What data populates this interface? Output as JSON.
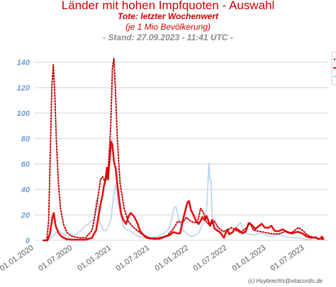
{
  "chart_data": {
    "type": "line",
    "title": "Länder mit hohen Impfquoten - Auswahl",
    "subtitle": "Tote: letzter Wochenwert",
    "subtitle2": "(je 1 Mio Bevölkerung)",
    "stand": "- Stand: 27.09.2023 - 11:41 UTC -",
    "credit": "(c) Huybrechts@vitacordis.de",
    "ylim": [
      0,
      150
    ],
    "yticks": [
      "0",
      "20",
      "40",
      "60",
      "80",
      "100",
      "120",
      "140"
    ],
    "ytick_values": [
      0,
      20,
      40,
      60,
      80,
      100,
      120,
      140
    ],
    "xlim": [
      "2020-01-01",
      "2023-10-20"
    ],
    "xticks": [
      "01.01.2020",
      "01.07.2020",
      "01.01.2021",
      "01.07.2021",
      "01.01.2022",
      "01.07.2022",
      "01.01.2023",
      "01.07.2023"
    ],
    "xtick_dates": [
      "2020-01-01",
      "2020-07-01",
      "2021-01-01",
      "2021-07-01",
      "2022-01-01",
      "2022-07-01",
      "2023-01-01",
      "2023-07-01"
    ],
    "grid": true,
    "legend": "right",
    "series": [
      {
        "color": "#c00000",
        "style": "dotted",
        "points": [
          [
            "2020-02-15",
            0
          ],
          [
            "2020-03-01",
            0
          ],
          [
            "2020-03-10",
            15
          ],
          [
            "2020-03-18",
            70
          ],
          [
            "2020-03-25",
            120
          ],
          [
            "2020-04-01",
            138
          ],
          [
            "2020-04-08",
            115
          ],
          [
            "2020-04-15",
            80
          ],
          [
            "2020-04-25",
            45
          ],
          [
            "2020-05-05",
            25
          ],
          [
            "2020-05-20",
            12
          ],
          [
            "2020-06-05",
            6
          ],
          [
            "2020-07-01",
            3
          ],
          [
            "2020-08-01",
            2
          ],
          [
            "2020-09-01",
            2
          ],
          [
            "2020-10-01",
            8
          ],
          [
            "2020-10-15",
            20
          ],
          [
            "2020-11-01",
            38
          ],
          [
            "2020-11-10",
            48
          ],
          [
            "2020-11-20",
            50
          ],
          [
            "2020-12-01",
            46
          ],
          [
            "2020-12-15",
            52
          ],
          [
            "2020-12-28",
            90
          ],
          [
            "2021-01-05",
            135
          ],
          [
            "2021-01-12",
            143
          ],
          [
            "2021-01-20",
            115
          ],
          [
            "2021-01-28",
            80
          ],
          [
            "2021-02-10",
            45
          ],
          [
            "2021-03-01",
            25
          ],
          [
            "2021-03-20",
            15
          ],
          [
            "2021-04-15",
            10
          ],
          [
            "2021-05-15",
            6
          ],
          [
            "2021-06-15",
            3
          ],
          [
            "2021-07-15",
            1
          ],
          [
            "2021-08-15",
            1
          ],
          [
            "2021-09-15",
            3
          ],
          [
            "2021-10-15",
            8
          ],
          [
            "2021-11-10",
            15
          ],
          [
            "2021-12-01",
            14
          ],
          [
            "2021-12-20",
            18
          ],
          [
            "2022-01-10",
            15
          ],
          [
            "2022-01-25",
            14
          ],
          [
            "2022-02-10",
            14
          ],
          [
            "2022-02-25",
            25
          ],
          [
            "2022-03-10",
            22
          ],
          [
            "2022-03-25",
            14
          ],
          [
            "2022-04-10",
            12
          ],
          [
            "2022-05-01",
            15
          ],
          [
            "2022-05-20",
            10
          ],
          [
            "2022-06-10",
            7
          ],
          [
            "2022-07-01",
            8
          ],
          [
            "2022-07-20",
            10
          ],
          [
            "2022-08-10",
            8
          ],
          [
            "2022-09-01",
            6
          ],
          [
            "2022-10-01",
            10
          ],
          [
            "2022-10-15",
            14
          ],
          [
            "2022-11-01",
            8
          ],
          [
            "2022-12-01",
            7
          ],
          [
            "2023-01-01",
            6
          ],
          [
            "2023-02-01",
            5
          ],
          [
            "2023-03-01",
            5
          ],
          [
            "2023-04-01",
            7
          ],
          [
            "2023-05-01",
            6
          ],
          [
            "2023-06-01",
            10
          ],
          [
            "2023-06-20",
            8
          ],
          [
            "2023-07-15",
            4
          ],
          [
            "2023-08-15",
            2
          ],
          [
            "2023-09-15",
            1
          ],
          [
            "2023-09-27",
            1
          ]
        ]
      },
      {
        "color": "#e81010",
        "style": "solid",
        "points": [
          [
            "2020-02-15",
            0
          ],
          [
            "2020-03-05",
            0
          ],
          [
            "2020-03-15",
            5
          ],
          [
            "2020-03-28",
            18
          ],
          [
            "2020-04-03",
            20
          ],
          [
            "2020-04-12",
            12
          ],
          [
            "2020-04-25",
            6
          ],
          [
            "2020-05-10",
            3
          ],
          [
            "2020-06-01",
            1
          ],
          [
            "2020-07-01",
            0.5
          ],
          [
            "2020-08-01",
            0.5
          ],
          [
            "2020-09-01",
            0.5
          ],
          [
            "2020-10-01",
            2
          ],
          [
            "2020-10-20",
            8
          ],
          [
            "2020-11-05",
            22
          ],
          [
            "2020-11-20",
            35
          ],
          [
            "2020-12-01",
            46
          ],
          [
            "2020-12-10",
            55
          ],
          [
            "2020-12-15",
            48
          ],
          [
            "2020-12-22",
            62
          ],
          [
            "2020-12-30",
            76
          ],
          [
            "2021-01-05",
            75
          ],
          [
            "2021-01-12",
            62
          ],
          [
            "2021-01-20",
            55
          ],
          [
            "2021-01-28",
            42
          ],
          [
            "2021-02-05",
            32
          ],
          [
            "2021-02-15",
            22
          ],
          [
            "2021-02-25",
            15
          ],
          [
            "2021-03-10",
            12
          ],
          [
            "2021-03-20",
            19
          ],
          [
            "2021-04-01",
            20
          ],
          [
            "2021-04-15",
            18
          ],
          [
            "2021-05-01",
            15
          ],
          [
            "2021-05-15",
            8
          ],
          [
            "2021-06-01",
            4
          ],
          [
            "2021-06-15",
            2
          ],
          [
            "2021-07-01",
            1.5
          ],
          [
            "2021-08-01",
            1.5
          ],
          [
            "2021-09-01",
            2.5
          ],
          [
            "2021-10-01",
            4
          ],
          [
            "2021-10-20",
            6
          ],
          [
            "2021-11-10",
            5
          ],
          [
            "2021-11-20",
            6
          ],
          [
            "2021-12-01",
            13
          ],
          [
            "2021-12-15",
            22
          ],
          [
            "2021-12-25",
            32
          ],
          [
            "2022-01-01",
            33
          ],
          [
            "2022-01-10",
            24
          ],
          [
            "2022-01-20",
            20
          ],
          [
            "2022-02-01",
            15
          ],
          [
            "2022-02-15",
            12
          ],
          [
            "2022-02-25",
            16
          ],
          [
            "2022-03-05",
            20
          ],
          [
            "2022-03-15",
            15
          ],
          [
            "2022-03-25",
            20
          ],
          [
            "2022-04-01",
            17
          ],
          [
            "2022-04-10",
            12
          ],
          [
            "2022-04-20",
            15
          ],
          [
            "2022-05-01",
            10
          ],
          [
            "2022-05-15",
            8
          ],
          [
            "2022-06-01",
            5
          ],
          [
            "2022-06-15",
            2
          ],
          [
            "2022-07-01",
            9
          ],
          [
            "2022-07-10",
            5
          ],
          [
            "2022-07-25",
            6
          ],
          [
            "2022-08-10",
            9
          ],
          [
            "2022-08-25",
            8
          ],
          [
            "2022-09-10",
            6
          ],
          [
            "2022-09-25",
            7
          ],
          [
            "2022-10-10",
            13
          ],
          [
            "2022-10-25",
            11
          ],
          [
            "2022-11-10",
            9
          ],
          [
            "2022-11-25",
            12
          ],
          [
            "2022-12-10",
            14
          ],
          [
            "2022-12-25",
            10
          ],
          [
            "2023-01-10",
            9
          ],
          [
            "2023-01-25",
            11
          ],
          [
            "2023-02-10",
            8
          ],
          [
            "2023-03-01",
            7
          ],
          [
            "2023-03-20",
            8
          ],
          [
            "2023-04-10",
            6
          ],
          [
            "2023-05-01",
            5
          ],
          [
            "2023-06-01",
            7
          ],
          [
            "2023-06-20",
            5
          ],
          [
            "2023-07-10",
            3
          ],
          [
            "2023-08-01",
            2
          ],
          [
            "2023-08-20",
            2.5
          ],
          [
            "2023-09-05",
            1
          ],
          [
            "2023-09-15",
            1.5
          ],
          [
            "2023-09-20",
            3
          ],
          [
            "2023-09-27",
            1
          ]
        ]
      },
      {
        "color": "#b8d4ef",
        "style": "solid",
        "points": [
          [
            "2020-03-01",
            0
          ],
          [
            "2020-03-20",
            2
          ],
          [
            "2020-04-10",
            5
          ],
          [
            "2020-04-25",
            8
          ],
          [
            "2020-05-15",
            5
          ],
          [
            "2020-06-15",
            3
          ],
          [
            "2020-07-15",
            4
          ],
          [
            "2020-08-10",
            8
          ],
          [
            "2020-08-25",
            10
          ],
          [
            "2020-09-10",
            12
          ],
          [
            "2020-09-25",
            15
          ],
          [
            "2020-10-10",
            18
          ],
          [
            "2020-10-20",
            30
          ],
          [
            "2020-10-28",
            31
          ],
          [
            "2020-11-05",
            14
          ],
          [
            "2020-11-20",
            9
          ],
          [
            "2020-12-05",
            8
          ],
          [
            "2020-12-20",
            13
          ],
          [
            "2020-12-30",
            16
          ],
          [
            "2021-01-10",
            36
          ],
          [
            "2021-01-20",
            42
          ],
          [
            "2021-02-01",
            28
          ],
          [
            "2021-02-15",
            18
          ],
          [
            "2021-03-01",
            10
          ],
          [
            "2021-03-15",
            8
          ],
          [
            "2021-04-01",
            7
          ],
          [
            "2021-05-01",
            4
          ],
          [
            "2021-06-01",
            2
          ],
          [
            "2021-07-01",
            2
          ],
          [
            "2021-08-01",
            3
          ],
          [
            "2021-09-01",
            5
          ],
          [
            "2021-10-01",
            10
          ],
          [
            "2021-10-20",
            23
          ],
          [
            "2021-11-01",
            25
          ],
          [
            "2021-11-15",
            15
          ],
          [
            "2021-12-01",
            8
          ],
          [
            "2021-12-20",
            5
          ],
          [
            "2022-01-15",
            3
          ],
          [
            "2022-02-15",
            5
          ],
          [
            "2022-03-01",
            10
          ],
          [
            "2022-03-15",
            15
          ],
          [
            "2022-03-25",
            25
          ],
          [
            "2022-04-05",
            59
          ],
          [
            "2022-04-10",
            47
          ],
          [
            "2022-04-15",
            50
          ],
          [
            "2022-04-20",
            18
          ],
          [
            "2022-05-05",
            15
          ],
          [
            "2022-05-20",
            8
          ],
          [
            "2022-06-10",
            6
          ],
          [
            "2022-07-01",
            8
          ],
          [
            "2022-07-20",
            5
          ],
          [
            "2022-08-10",
            10
          ],
          [
            "2022-09-01",
            15
          ],
          [
            "2022-09-10",
            10
          ],
          [
            "2022-10-01",
            5
          ],
          [
            "2022-11-01",
            4
          ],
          [
            "2022-12-01",
            6
          ],
          [
            "2023-01-01",
            4
          ],
          [
            "2023-02-01",
            3
          ],
          [
            "2023-03-01",
            5
          ],
          [
            "2023-04-01",
            3
          ],
          [
            "2023-05-01",
            2
          ],
          [
            "2023-06-01",
            2
          ],
          [
            "2023-07-01",
            1
          ],
          [
            "2023-08-01",
            0.5
          ]
        ]
      }
    ]
  }
}
